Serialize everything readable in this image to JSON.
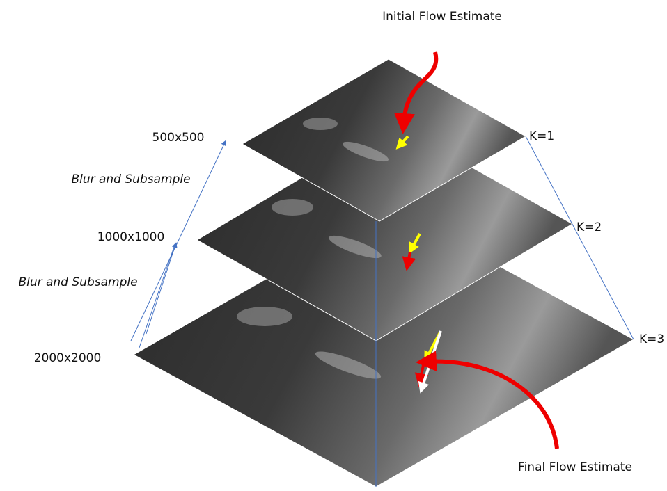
{
  "annotations": {
    "initial": "Initial Flow Estimate",
    "final": "Final Flow Estimate"
  },
  "levels": [
    {
      "size": "500x500",
      "k": "K=1"
    },
    {
      "size": "1000x1000",
      "k": "K=2"
    },
    {
      "size": "2000x2000",
      "k": "K=3"
    }
  ],
  "steps": [
    "Blur and Subsample",
    "Blur and Subsample"
  ]
}
